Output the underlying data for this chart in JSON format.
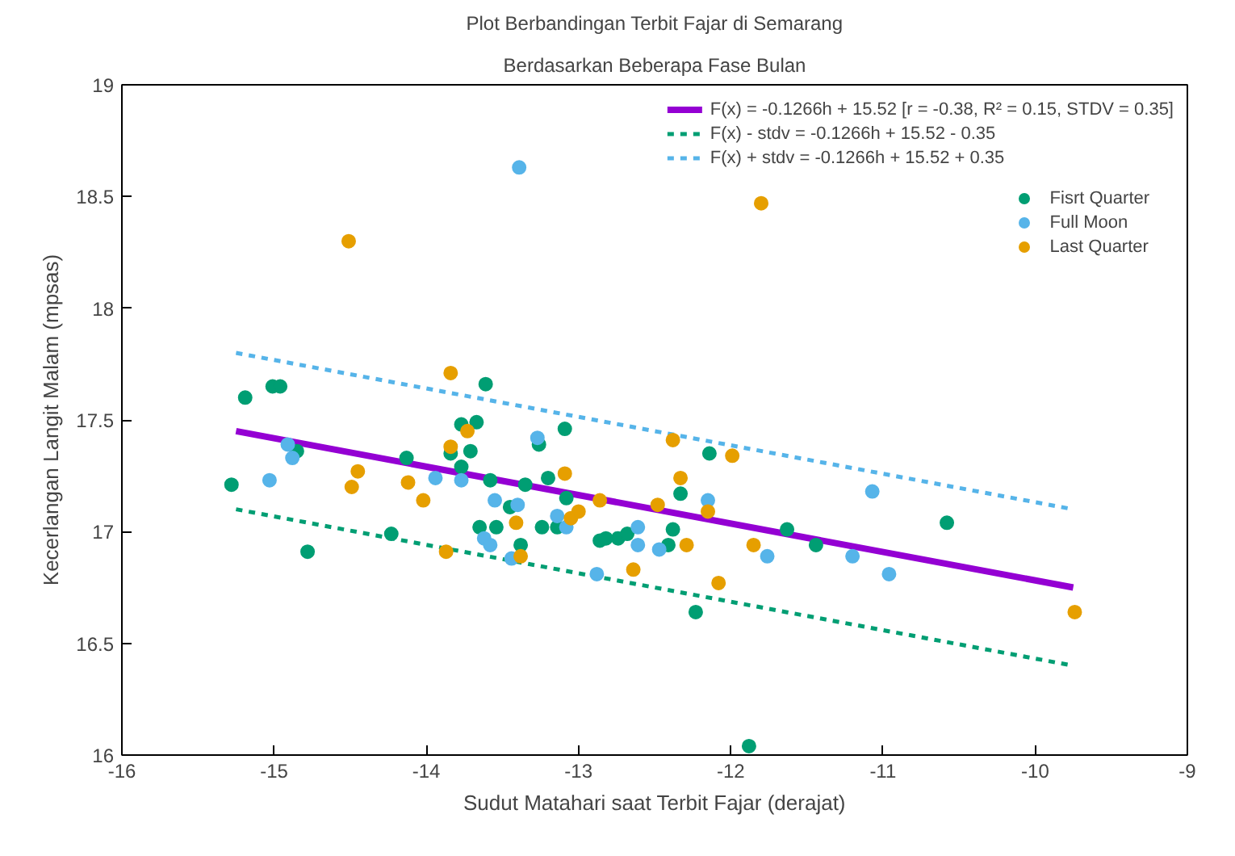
{
  "chart_data": {
    "type": "scatter",
    "title": "Plot Berbandingan Terbit Fajar di Semarang",
    "subtitle": "Berdasarkan Beberapa Fase Bulan",
    "xlabel": "Sudut Matahari saat Terbit Fajar (derajat)",
    "ylabel": "Kecerlangan Langit Malam (mpsas)",
    "xlim": [
      -16,
      -9
    ],
    "ylim": [
      16,
      19
    ],
    "xticks": [
      -16,
      -15,
      -14,
      -13,
      -12,
      -11,
      -10,
      -9
    ],
    "yticks": [
      16,
      16.5,
      17,
      17.5,
      18,
      18.5,
      19
    ],
    "grid": false,
    "legend": "top right",
    "series": [
      {
        "type": "line",
        "name": "F(x) = -0.1266h + 15.52 [r = -0.38, R² = 0.15, STDV = 0.35]",
        "color": "#9400d3",
        "line_style": "solid",
        "x": [
          -15.25,
          -9.75
        ],
        "values": [
          17.45,
          16.75
        ]
      },
      {
        "type": "line",
        "name": "F(x) - stdv = -0.1266h + 15.52 - 0.35",
        "color": "#009e73",
        "line_style": "dashed",
        "x": [
          -15.25,
          -9.75
        ],
        "values": [
          17.1,
          16.4
        ]
      },
      {
        "type": "line",
        "name": "F(x) + stdv = -0.1266h + 15.52 + 0.35",
        "color": "#56b4e9",
        "line_style": "dashed",
        "x": [
          -15.25,
          -9.75
        ],
        "values": [
          17.8,
          17.1
        ]
      },
      {
        "marker": "circle",
        "name": "Fisrt Quarter",
        "color": "#009e73",
        "x": [
          -15.19,
          -15.01,
          -14.96,
          -14.85,
          -15.28,
          -14.78,
          -14.23,
          -14.13,
          -13.77,
          -13.67,
          -13.61,
          -13.84,
          -13.71,
          -13.77,
          -13.58,
          -13.35,
          -13.45,
          -13.65,
          -13.54,
          -13.38,
          -13.26,
          -13.24,
          -13.09,
          -13.2,
          -13.08,
          -13.14,
          -12.86,
          -12.82,
          -12.74,
          -12.68,
          -12.41,
          -12.38,
          -12.33,
          -12.14,
          -11.63,
          -11.44,
          -12.23,
          -10.58,
          -11.88
        ],
        "values": [
          17.6,
          17.65,
          17.65,
          17.36,
          17.21,
          16.91,
          16.99,
          17.33,
          17.48,
          17.49,
          17.66,
          17.35,
          17.36,
          17.29,
          17.23,
          17.21,
          17.11,
          17.02,
          17.02,
          16.94,
          17.39,
          17.02,
          17.46,
          17.24,
          17.15,
          17.02,
          16.96,
          16.97,
          16.97,
          16.99,
          16.94,
          17.01,
          17.17,
          17.35,
          17.01,
          16.94,
          16.64,
          17.04,
          16.04
        ]
      },
      {
        "marker": "circle",
        "name": "Full Moon",
        "color": "#56b4e9",
        "x": [
          -14.91,
          -14.88,
          -15.03,
          -13.94,
          -13.77,
          -13.55,
          -13.4,
          -13.62,
          -13.58,
          -13.44,
          -13.27,
          -13.39,
          -13.14,
          -13.08,
          -12.61,
          -12.61,
          -12.47,
          -12.15,
          -11.76,
          -12.88,
          -11.2,
          -11.07,
          -10.96
        ],
        "values": [
          17.39,
          17.33,
          17.23,
          17.24,
          17.23,
          17.14,
          17.12,
          16.97,
          16.94,
          16.88,
          17.42,
          18.63,
          17.07,
          17.02,
          17.02,
          16.94,
          16.92,
          17.14,
          16.89,
          16.81,
          16.89,
          17.18,
          16.81
        ]
      },
      {
        "marker": "circle",
        "name": "Last Quarter",
        "color": "#e69f00",
        "x": [
          -14.51,
          -13.84,
          -13.73,
          -13.84,
          -14.45,
          -14.49,
          -14.12,
          -14.02,
          -13.87,
          -13.41,
          -13.38,
          -11.8,
          -13.09,
          -13.05,
          -13.0,
          -12.86,
          -12.48,
          -12.33,
          -12.29,
          -12.15,
          -12.38,
          -11.99,
          -11.85,
          -12.64,
          -12.08,
          -9.74
        ],
        "values": [
          18.3,
          17.71,
          17.45,
          17.38,
          17.27,
          17.2,
          17.22,
          17.14,
          16.91,
          17.04,
          16.89,
          18.47,
          17.26,
          17.06,
          17.09,
          17.14,
          17.12,
          17.24,
          16.94,
          17.09,
          17.41,
          17.34,
          16.94,
          16.83,
          16.77,
          16.64
        ]
      }
    ]
  }
}
